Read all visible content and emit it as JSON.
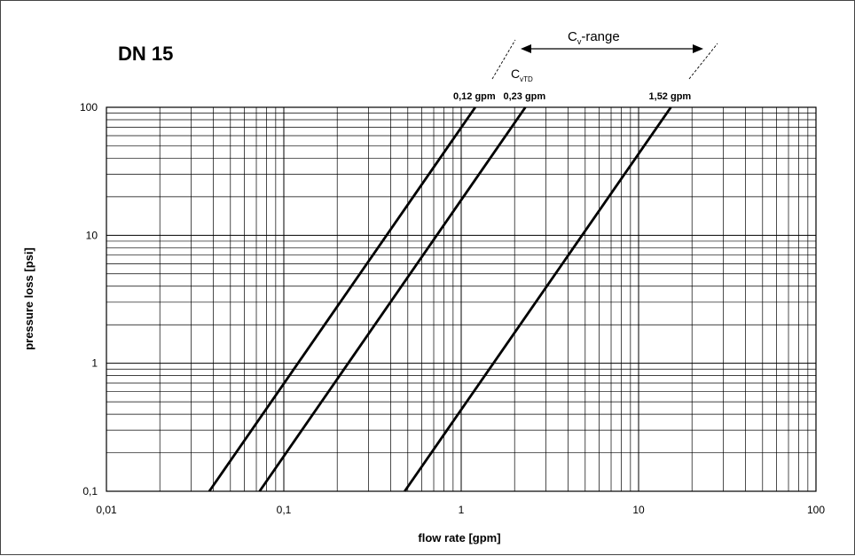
{
  "chart_data": {
    "type": "line",
    "title": "DN 15",
    "xlabel": "flow rate [gpm]",
    "ylabel": "pressure loss [psi]",
    "x_scale": "log",
    "y_scale": "log",
    "xlim": [
      0.01,
      100
    ],
    "ylim": [
      0.1,
      100
    ],
    "grid": true,
    "x_ticks": [
      "0,01",
      "0,1",
      "1",
      "10",
      "100"
    ],
    "y_ticks": [
      "0,1",
      "1",
      "10",
      "100"
    ],
    "series": [
      {
        "name": "0,12 gpm",
        "x": [
          0.038,
          1.2
        ],
        "y": [
          0.1,
          100
        ]
      },
      {
        "name": "0,23 gpm",
        "x": [
          0.073,
          2.3
        ],
        "y": [
          0.1,
          100
        ]
      },
      {
        "name": "1,52 gpm",
        "x": [
          0.48,
          15.2
        ],
        "y": [
          0.1,
          100
        ]
      }
    ],
    "annotations": {
      "cv_range": {
        "text_main": "C",
        "text_sub": "v",
        "text_rest": "-range"
      },
      "cvtd": {
        "text_main": "C",
        "text_sub": "vTD"
      }
    },
    "line_color": "#000000",
    "grid_color": "#000000"
  }
}
